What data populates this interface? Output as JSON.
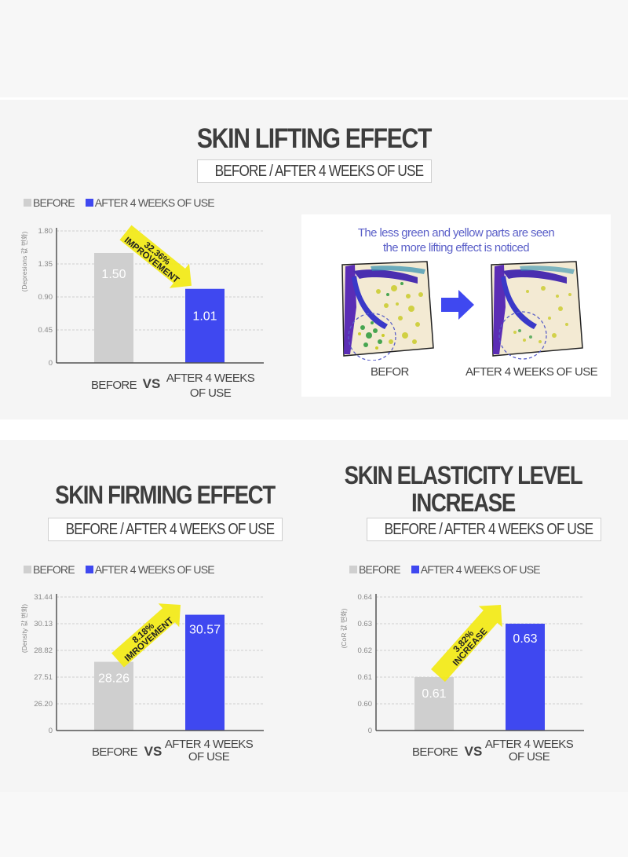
{
  "colors": {
    "before_bar": "#cfcfcf",
    "after_bar": "#3f48f0",
    "arrow": "#f2ea1a",
    "title_text": "#3d3d3d",
    "caption_text": "#5a5fc8"
  },
  "legend": {
    "before": "BEFORE",
    "after": "AFTER 4 WEEKS OF USE"
  },
  "sections": {
    "lifting": {
      "title": "SKIN LIFTING EFFECT",
      "subtitle": "BEFORE / AFTER 4 WEEKS OF USE"
    },
    "firming": {
      "title": "SKIN FIRMING EFFECT",
      "subtitle": "BEFORE / AFTER 4 WEEKS OF USE"
    },
    "elasticity": {
      "title_line1": "SKIN ELASTICITY LEVEL",
      "title_line2": "INCREASE",
      "subtitle": "BEFORE / AFTER 4 WEEKS OF USE"
    }
  },
  "photo_panel": {
    "caption_line1": "The less green and yellow parts are seen",
    "caption_line2": "the more lifting effect is noticed",
    "before_label": "BEFOR",
    "after_label": "AFTER 4 WEEKS OF USE",
    "arrow_icon": "right-arrow-icon"
  },
  "chart_data": [
    {
      "id": "lifting",
      "type": "bar",
      "title": "SKIN LIFTING EFFECT",
      "ylabel": "(Depresions 값 변화)",
      "categories": [
        "BEFORE",
        "AFTER 4 WEEKS OF USE"
      ],
      "category_labels": {
        "before": "BEFORE",
        "vs": "VS",
        "after_line1": "AFTER 4 WEEKS",
        "after_line2": "OF USE"
      },
      "values": [
        1.5,
        1.01
      ],
      "value_labels": [
        "1.50",
        "1.01"
      ],
      "yticks": [
        "0",
        "0.45",
        "0.90",
        "1.35",
        "1.80"
      ],
      "ytick_values": [
        0,
        0.45,
        0.9,
        1.35,
        1.8
      ],
      "ylim": [
        0,
        1.8
      ],
      "grid": true,
      "legend": "top-left",
      "annotation": {
        "line1": "32.36%",
        "line2": "IMPROVEMENT",
        "direction": "down"
      }
    },
    {
      "id": "firming",
      "type": "bar",
      "title": "SKIN FIRMING EFFECT",
      "ylabel": "(Density 값 변화)",
      "categories": [
        "BEFORE",
        "AFTER 4 WEEKS OF USE"
      ],
      "category_labels": {
        "before": "BEFORE",
        "vs": "VS",
        "after_line1": "AFTER 4 WEEKS",
        "after_line2": "OF USE"
      },
      "values": [
        28.26,
        30.57
      ],
      "value_labels": [
        "28.26",
        "30.57"
      ],
      "yticks": [
        "0",
        "26.20",
        "27.51",
        "28.82",
        "30.13",
        "31.44"
      ],
      "ytick_values": [
        24.89,
        26.2,
        27.51,
        28.82,
        30.13,
        31.44
      ],
      "ylim": [
        24.89,
        31.44
      ],
      "grid": true,
      "legend": "top-left",
      "annotation": {
        "line1": "8.18%",
        "line2": "IMROVEMENT",
        "direction": "up"
      }
    },
    {
      "id": "elasticity",
      "type": "bar",
      "title": "SKIN ELASTICITY LEVEL INCREASE",
      "ylabel": "(CoR 값 변화)",
      "categories": [
        "BEFORE",
        "AFTER 4 WEEKS OF USE"
      ],
      "category_labels": {
        "before": "BEFORE",
        "vs": "VS",
        "after_line1": "AFTER 4 WEEKS",
        "after_line2": "OF USE"
      },
      "values": [
        0.61,
        0.63
      ],
      "value_labels": [
        "0.61",
        "0.63"
      ],
      "yticks": [
        "0",
        "0.60",
        "0.61",
        "0.62",
        "0.63",
        "0.64"
      ],
      "ytick_values": [
        0.59,
        0.6,
        0.61,
        0.62,
        0.63,
        0.64
      ],
      "ylim": [
        0.59,
        0.64
      ],
      "grid": true,
      "legend": "top-left",
      "annotation": {
        "line1": "3.82%",
        "line2": "INCREASE",
        "direction": "up"
      }
    }
  ]
}
